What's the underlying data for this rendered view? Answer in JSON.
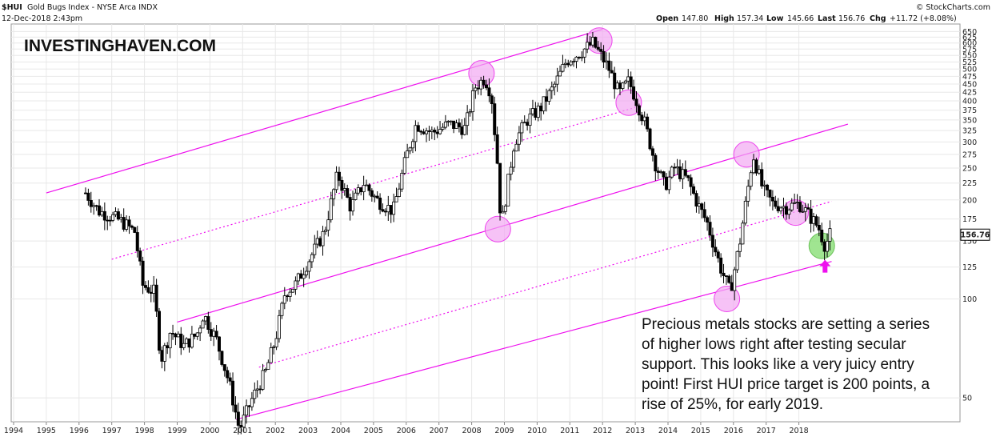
{
  "header": {
    "symbol": "$HUI",
    "description": "Gold Bugs Index - NYSE Arca  INDX",
    "date": "12-Dec-2018 2:43pm",
    "open_label": "Open",
    "open": "147.80",
    "high_label": "High",
    "high": "157.34",
    "low_label": "Low",
    "low": "145.66",
    "last_label": "Last",
    "last": "156.76",
    "chg_label": "Chg",
    "chg": "+11.72 (+8.08%)",
    "credit": "© StockCharts.com"
  },
  "brand": "INVESTINGHAVEN.COM",
  "annotation": [
    "Precious metals stocks are setting a series",
    "of higher lows right after testing secular",
    "support. This looks like a very juicy entry",
    "point! First HUI price target is 200 points, a",
    "rise of 25%, for early 2019."
  ],
  "colors": {
    "channel": "#ee10ee",
    "highlight": "#ee44ee",
    "highlight_fill": "#f2a8f2",
    "green_fill": "#8fe07e",
    "green_stroke": "#6cc25a",
    "arrow": "#ee10ee",
    "candle": "#000000",
    "grid": "#e8e8e8"
  },
  "chart_data": {
    "type": "candlestick",
    "title": "$HUI Gold Bugs Index - NYSE Arca INDX",
    "y_scale": "log",
    "x_ticks": [
      "1994",
      "1995",
      "1996",
      "1997",
      "1998",
      "1999",
      "2000",
      "2001",
      "2002",
      "2003",
      "2004",
      "2005",
      "2006",
      "2007",
      "2008",
      "2009",
      "2010",
      "2011",
      "2012",
      "2013",
      "2014",
      "2015",
      "2016",
      "2017",
      "2018"
    ],
    "y_ticks": [
      "650",
      "625",
      "600",
      "575",
      "550",
      "525",
      "500",
      "475",
      "450",
      "425",
      "400",
      "375",
      "350",
      "325",
      "300",
      "275",
      "250",
      "225",
      "200",
      "175",
      "150",
      "125",
      "100",
      "50"
    ],
    "ylim": [
      40,
      670
    ],
    "last_value_label": "156.76",
    "price_path": [
      [
        1996.2,
        210
      ],
      [
        1996.6,
        185
      ],
      [
        1997.0,
        178
      ],
      [
        1997.3,
        172
      ],
      [
        1997.7,
        160
      ],
      [
        1997.95,
        110
      ],
      [
        1998.3,
        105
      ],
      [
        1998.5,
        65
      ],
      [
        1998.8,
        80
      ],
      [
        1999.2,
        72
      ],
      [
        1999.6,
        78
      ],
      [
        1999.8,
        90
      ],
      [
        2000.2,
        75
      ],
      [
        2000.6,
        55
      ],
      [
        2000.9,
        40
      ],
      [
        2001.3,
        50
      ],
      [
        2001.7,
        60
      ],
      [
        2002.0,
        75
      ],
      [
        2002.3,
        105
      ],
      [
        2002.6,
        110
      ],
      [
        2003.0,
        130
      ],
      [
        2003.5,
        160
      ],
      [
        2003.9,
        240
      ],
      [
        2004.3,
        190
      ],
      [
        2004.7,
        225
      ],
      [
        2005.1,
        200
      ],
      [
        2005.6,
        185
      ],
      [
        2006.0,
        270
      ],
      [
        2006.3,
        340
      ],
      [
        2006.8,
        320
      ],
      [
        2007.3,
        340
      ],
      [
        2007.8,
        330
      ],
      [
        2008.1,
        440
      ],
      [
        2008.4,
        470
      ],
      [
        2008.6,
        420
      ],
      [
        2008.8,
        250
      ],
      [
        2008.9,
        165
      ],
      [
        2009.3,
        300
      ],
      [
        2009.7,
        350
      ],
      [
        2010.1,
        380
      ],
      [
        2010.5,
        440
      ],
      [
        2010.9,
        530
      ],
      [
        2011.3,
        560
      ],
      [
        2011.7,
        600
      ],
      [
        2011.9,
        560
      ],
      [
        2012.2,
        500
      ],
      [
        2012.5,
        420
      ],
      [
        2012.8,
        460
      ],
      [
        2013.0,
        410
      ],
      [
        2013.3,
        340
      ],
      [
        2013.6,
        260
      ],
      [
        2013.9,
        220
      ],
      [
        2014.2,
        250
      ],
      [
        2014.6,
        230
      ],
      [
        2014.9,
        195
      ],
      [
        2015.2,
        170
      ],
      [
        2015.6,
        125
      ],
      [
        2015.9,
        105
      ],
      [
        2016.2,
        150
      ],
      [
        2016.6,
        275
      ],
      [
        2016.9,
        215
      ],
      [
        2017.2,
        195
      ],
      [
        2017.6,
        190
      ],
      [
        2018.0,
        195
      ],
      [
        2018.3,
        180
      ],
      [
        2018.6,
        165
      ],
      [
        2018.8,
        145
      ],
      [
        2018.95,
        156.76
      ]
    ],
    "channel_lines": [
      {
        "style": "solid",
        "points": [
          [
            1995.0,
            210
          ],
          [
            2012.0,
            660
          ]
        ]
      },
      {
        "style": "dotted",
        "points": [
          [
            1997.0,
            132
          ],
          [
            2013.0,
            382
          ]
        ]
      },
      {
        "style": "solid",
        "points": [
          [
            1999.0,
            85
          ],
          [
            2019.5,
            340
          ]
        ]
      },
      {
        "style": "dotted",
        "points": [
          [
            2001.5,
            62
          ],
          [
            2019.0,
            198
          ]
        ]
      },
      {
        "style": "solid",
        "points": [
          [
            2000.8,
            43
          ],
          [
            2019.0,
            130
          ]
        ]
      }
    ],
    "highlight_circles": [
      {
        "year": 2008.3,
        "value": 485
      },
      {
        "year": 2011.9,
        "value": 610
      },
      {
        "year": 2012.8,
        "value": 395
      },
      {
        "year": 2008.8,
        "value": 163
      },
      {
        "year": 2016.4,
        "value": 275
      },
      {
        "year": 2017.9,
        "value": 183
      },
      {
        "year": 2015.8,
        "value": 100
      },
      {
        "year": 2018.7,
        "value": 145,
        "color": "green"
      }
    ],
    "arrow": {
      "year": 2018.8,
      "value": 125,
      "direction": "up"
    }
  }
}
